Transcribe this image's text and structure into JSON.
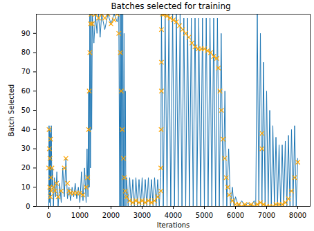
{
  "chart_data": {
    "type": "line",
    "title": "Batches selected for training",
    "x_label": "Iterations",
    "y_label": "Batch Selected",
    "xlim": [
      -400,
      8400
    ],
    "ylim": [
      0,
      100
    ],
    "xticks": [
      0,
      1000,
      2000,
      3000,
      4000,
      5000,
      6000,
      7000,
      8000
    ],
    "yticks": [
      0,
      10,
      20,
      30,
      40,
      50,
      60,
      70,
      80,
      90
    ],
    "grid": false,
    "series": [
      {
        "type": "line",
        "color": "#1f77b4",
        "line_style": "solid",
        "x": [
          0,
          10,
          20,
          30,
          40,
          50,
          60,
          80,
          100,
          120,
          150,
          180,
          220,
          260,
          300,
          350,
          400,
          450,
          500,
          550,
          600,
          650,
          700,
          750,
          800,
          850,
          900,
          950,
          1000,
          1050,
          1100,
          1150,
          1200,
          1230,
          1260,
          1280,
          1300,
          1320,
          1340,
          1360,
          1380,
          1400,
          1450,
          1500,
          1550,
          1600,
          1650,
          1700,
          1800,
          1900,
          2000,
          2100,
          2200,
          2250,
          2280,
          2300,
          2320,
          2340,
          2360,
          2380,
          2400,
          2420,
          2440,
          2460,
          2480,
          2500,
          2550,
          2600,
          2650,
          2700,
          2750,
          2800,
          2850,
          2900,
          2950,
          3000,
          3050,
          3100,
          3150,
          3200,
          3250,
          3300,
          3350,
          3400,
          3450,
          3500,
          3550,
          3600,
          3620,
          3680,
          3740,
          3800,
          3860,
          3920,
          3980,
          4040,
          4100,
          4160,
          4220,
          4280,
          4340,
          4400,
          4460,
          4520,
          4580,
          4640,
          4700,
          4760,
          4820,
          4880,
          4940,
          5000,
          5060,
          5120,
          5180,
          5240,
          5300,
          5360,
          5420,
          5480,
          5540,
          5600,
          5660,
          5720,
          5780,
          5840,
          5900,
          5950,
          6000,
          6100,
          6200,
          6300,
          6400,
          6500,
          6600,
          6650,
          6700,
          6750,
          6800,
          6850,
          6900,
          6950,
          7000,
          7050,
          7100,
          7150,
          7200,
          7250,
          7300,
          7350,
          7400,
          7450,
          7500,
          7550,
          7600,
          7650,
          7700,
          7750,
          7800,
          7850,
          7900,
          7950,
          8000
        ],
        "values": [
          0,
          42,
          2,
          40,
          5,
          38,
          0,
          42,
          10,
          20,
          0,
          15,
          5,
          18,
          0,
          12,
          2,
          20,
          5,
          25,
          4,
          10,
          3,
          10,
          5,
          12,
          4,
          10,
          2,
          18,
          3,
          20,
          2,
          30,
          5,
          60,
          10,
          100,
          20,
          100,
          40,
          100,
          85,
          100,
          90,
          100,
          88,
          100,
          92,
          100,
          95,
          100,
          96,
          100,
          0,
          100,
          0,
          100,
          0,
          100,
          0,
          90,
          0,
          60,
          0,
          15,
          0,
          15,
          0,
          14,
          0,
          15,
          0,
          14,
          0,
          15,
          0,
          14,
          0,
          15,
          0,
          14,
          0,
          15,
          0,
          14,
          0,
          15,
          100,
          0,
          100,
          0,
          100,
          0,
          100,
          0,
          100,
          0,
          100,
          0,
          98,
          0,
          98,
          0,
          98,
          0,
          98,
          0,
          98,
          0,
          98,
          0,
          98,
          0,
          98,
          0,
          98,
          0,
          98,
          0,
          90,
          0,
          60,
          0,
          30,
          0,
          10,
          0,
          5,
          0,
          3,
          0,
          2,
          0,
          3,
          0,
          100,
          0,
          90,
          0,
          75,
          0,
          60,
          0,
          50,
          0,
          42,
          0,
          36,
          0,
          32,
          0,
          32,
          0,
          34,
          0,
          37,
          0,
          40,
          0,
          42,
          0,
          25
        ]
      },
      {
        "type": "scatter",
        "color": "#ffa500",
        "marker": "x",
        "x": [
          0,
          10,
          20,
          30,
          40,
          50,
          60,
          70,
          80,
          100,
          150,
          200,
          250,
          300,
          400,
          500,
          550,
          600,
          650,
          700,
          800,
          900,
          1000,
          1100,
          1200,
          1250,
          1280,
          1300,
          1320,
          1340,
          1360,
          1400,
          1500,
          1600,
          1700,
          1800,
          1900,
          2000,
          2100,
          2200,
          2250,
          2300,
          2330,
          2360,
          2400,
          2430,
          2460,
          2500,
          2600,
          2700,
          2800,
          2900,
          3000,
          3100,
          3200,
          3300,
          3400,
          3500,
          3600,
          3600,
          3610,
          3620,
          3620,
          3620,
          3650,
          3700,
          3800,
          3900,
          4000,
          4100,
          4200,
          4300,
          4400,
          4500,
          4600,
          4700,
          4800,
          4900,
          5000,
          5100,
          5200,
          5300,
          5400,
          5450,
          5500,
          5550,
          5600,
          5650,
          5700,
          5750,
          5800,
          5900,
          6000,
          6100,
          6200,
          6300,
          6400,
          6500,
          6600,
          6700,
          6800,
          6850,
          6850,
          6900,
          7000,
          7100,
          7200,
          7300,
          7400,
          7500,
          7600,
          7700,
          7800,
          7900,
          8000
        ],
        "values": [
          20,
          40,
          30,
          10,
          25,
          5,
          35,
          15,
          8,
          20,
          10,
          8,
          12,
          5,
          8,
          20,
          25,
          12,
          8,
          7,
          7,
          7,
          7,
          6,
          10,
          15,
          40,
          60,
          80,
          95,
          100,
          95,
          100,
          98,
          100,
          98,
          100,
          95,
          97,
          100,
          90,
          80,
          60,
          40,
          25,
          15,
          8,
          5,
          3,
          2,
          3,
          2,
          3,
          2,
          3,
          2,
          3,
          5,
          20,
          8,
          40,
          92,
          75,
          60,
          100,
          100,
          99,
          98,
          97,
          96,
          94,
          92,
          90,
          88,
          85,
          83,
          82,
          82,
          82,
          81,
          80,
          78,
          77,
          72,
          60,
          50,
          35,
          25,
          15,
          10,
          6,
          3,
          1,
          1,
          0,
          1,
          0,
          1,
          0,
          1,
          2,
          30,
          38,
          1,
          0,
          0,
          0,
          1,
          1,
          1,
          2,
          4,
          8,
          15,
          23
        ]
      }
    ]
  }
}
